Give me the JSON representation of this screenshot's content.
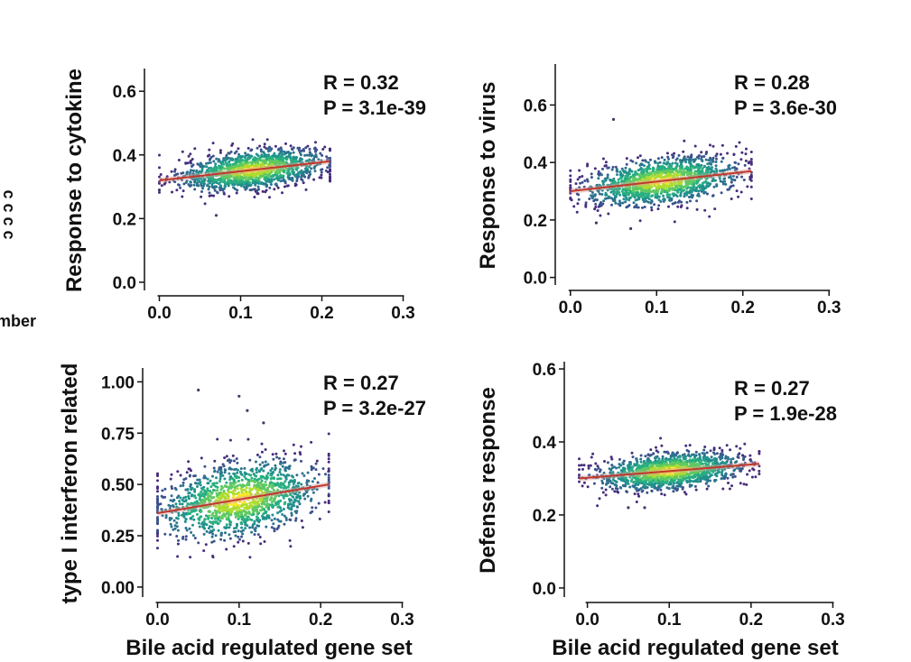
{
  "figure": {
    "left_partial_label": "mber",
    "left_partial_glyphs": "ɔ ɔ ɔ ɔ"
  },
  "chart_data": [
    {
      "type": "scatter",
      "ylabel": "Response to cytokine",
      "xlabel": "",
      "xlim": [
        -0.005,
        0.305
      ],
      "ylim": [
        -0.02,
        0.66
      ],
      "xticks": [
        "0.0",
        "0.1",
        "0.2",
        "0.3"
      ],
      "yticks": [
        "0.0",
        "0.2",
        "0.4",
        "0.6"
      ],
      "xtick_values": [
        0,
        0.1,
        0.2,
        0.3
      ],
      "ytick_values": [
        0,
        0.2,
        0.4,
        0.6
      ],
      "stats": {
        "r": "R = 0.32",
        "p": "P = 3.1e-39"
      },
      "trend": {
        "x": [
          0.0,
          0.21
        ],
        "y": [
          0.32,
          0.38
        ]
      },
      "cloud": {
        "x_center": 0.115,
        "x_sd": 0.045,
        "x_min": 0.0,
        "x_max": 0.21,
        "y_sd": 0.03,
        "n": 1400,
        "outliers": [
          [
            0.07,
            0.21
          ],
          [
            0.0,
            0.29
          ]
        ]
      },
      "color_scale": [
        "#fde725",
        "#addc30",
        "#5ec962",
        "#28ae80",
        "#21918c",
        "#2c728e",
        "#3b528b",
        "#472d7b"
      ]
    },
    {
      "type": "scatter",
      "ylabel": "Response to virus",
      "xlabel": "",
      "xlim": [
        -0.005,
        0.305
      ],
      "ylim": [
        -0.02,
        0.73
      ],
      "xticks": [
        "0.0",
        "0.1",
        "0.2",
        "0.3"
      ],
      "yticks": [
        "0.0",
        "0.2",
        "0.4",
        "0.6"
      ],
      "xtick_values": [
        0,
        0.1,
        0.2,
        0.3
      ],
      "ytick_values": [
        0,
        0.2,
        0.4,
        0.6
      ],
      "stats": {
        "r": "R = 0.28",
        "p": "P = 3.6e-30"
      },
      "trend": {
        "x": [
          0.0,
          0.21
        ],
        "y": [
          0.3,
          0.37
        ]
      },
      "cloud": {
        "x_center": 0.105,
        "x_sd": 0.045,
        "x_min": 0.0,
        "x_max": 0.21,
        "y_sd": 0.04,
        "n": 1400,
        "outliers": [
          [
            0.05,
            0.55
          ],
          [
            0.07,
            0.17
          ],
          [
            0.03,
            0.19
          ]
        ]
      },
      "color_scale": [
        "#fde725",
        "#addc30",
        "#5ec962",
        "#28ae80",
        "#21918c",
        "#2c728e",
        "#3b528b",
        "#472d7b"
      ]
    },
    {
      "type": "scatter",
      "ylabel": "type I interferon related",
      "xlabel": "Bile acid regulated gene set",
      "xlim": [
        -0.005,
        0.305
      ],
      "ylim": [
        -0.04,
        1.05
      ],
      "xticks": [
        "0.0",
        "0.1",
        "0.2",
        "0.3"
      ],
      "yticks": [
        "0.00",
        "0.25",
        "0.50",
        "0.75",
        "1.00"
      ],
      "xtick_values": [
        0,
        0.1,
        0.2,
        0.3
      ],
      "ytick_values": [
        0,
        0.25,
        0.5,
        0.75,
        1.0
      ],
      "stats": {
        "r": "R = 0.27",
        "p": "P = 3.2e-27"
      },
      "trend": {
        "x": [
          0.0,
          0.21
        ],
        "y": [
          0.36,
          0.5
        ]
      },
      "cloud": {
        "x_center": 0.1,
        "x_sd": 0.05,
        "x_min": 0.0,
        "x_max": 0.21,
        "y_sd": 0.09,
        "n": 1400,
        "outliers": [
          [
            0.05,
            0.96
          ],
          [
            0.1,
            0.93
          ],
          [
            0.11,
            0.86
          ],
          [
            0.13,
            0.8
          ]
        ]
      },
      "color_scale": [
        "#fde725",
        "#addc30",
        "#5ec962",
        "#28ae80",
        "#21918c",
        "#2c728e",
        "#3b528b",
        "#472d7b"
      ]
    },
    {
      "type": "scatter",
      "ylabel": "Defense response",
      "xlabel": "Bile acid regulated gene set",
      "xlim": [
        -0.015,
        0.305
      ],
      "ylim": [
        -0.02,
        0.61
      ],
      "xticks": [
        "0.0",
        "0.1",
        "0.2",
        "0.3"
      ],
      "yticks": [
        "0.0",
        "0.2",
        "0.4",
        "0.6"
      ],
      "xtick_values": [
        0,
        0.1,
        0.2,
        0.3
      ],
      "ytick_values": [
        0,
        0.2,
        0.4,
        0.6
      ],
      "stats": {
        "r": "R = 0.27",
        "p": "P = 1.9e-28"
      },
      "trend": {
        "x": [
          -0.01,
          0.21
        ],
        "y": [
          0.3,
          0.34
        ]
      },
      "cloud": {
        "x_center": 0.1,
        "x_sd": 0.045,
        "x_min": -0.01,
        "x_max": 0.21,
        "y_sd": 0.025,
        "n": 1400,
        "outliers": [
          [
            0.05,
            0.22
          ],
          [
            0.07,
            0.22
          ]
        ]
      },
      "color_scale": [
        "#fde725",
        "#addc30",
        "#5ec962",
        "#28ae80",
        "#21918c",
        "#2c728e",
        "#3b528b",
        "#472d7b"
      ]
    }
  ]
}
